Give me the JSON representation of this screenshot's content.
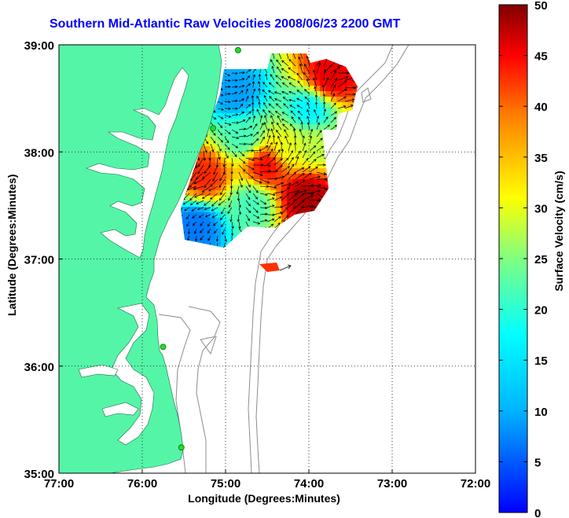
{
  "title": "Southern Mid-Atlantic Raw Velocities 2008/06/23 2200 GMT",
  "axes": {
    "xlabel": "Longitude (Degrees:Minutes)",
    "ylabel": "Latitude (Degrees:Minutes)",
    "xticks": [
      "77:00",
      "76:00",
      "75:00",
      "74:00",
      "73:00",
      "72:00"
    ],
    "yticks": [
      "39:00",
      "38:00",
      "37:00",
      "36:00",
      "35:00"
    ],
    "xlim": [
      -77,
      -72
    ],
    "ylim": [
      35,
      39
    ],
    "grid": "dotted"
  },
  "colorbar": {
    "label": "Surface Velocity (cm/s)",
    "ticks": [
      "0",
      "5",
      "10",
      "15",
      "20",
      "25",
      "30",
      "35",
      "40",
      "45",
      "50"
    ],
    "range": [
      0,
      50
    ],
    "colormap": "jet"
  },
  "colors": {
    "land": "#55f5a8",
    "ocean": "#ffffff",
    "bathymetry": "#8c8c8c",
    "station": "#22dd22",
    "title": "#0000ff"
  },
  "stations": [
    {
      "lon": -74.85,
      "lat": 38.95
    },
    {
      "lon": -75.15,
      "lat": 38.22
    },
    {
      "lon": -75.75,
      "lat": 36.18
    },
    {
      "lon": -75.53,
      "lat": 35.24
    }
  ]
}
